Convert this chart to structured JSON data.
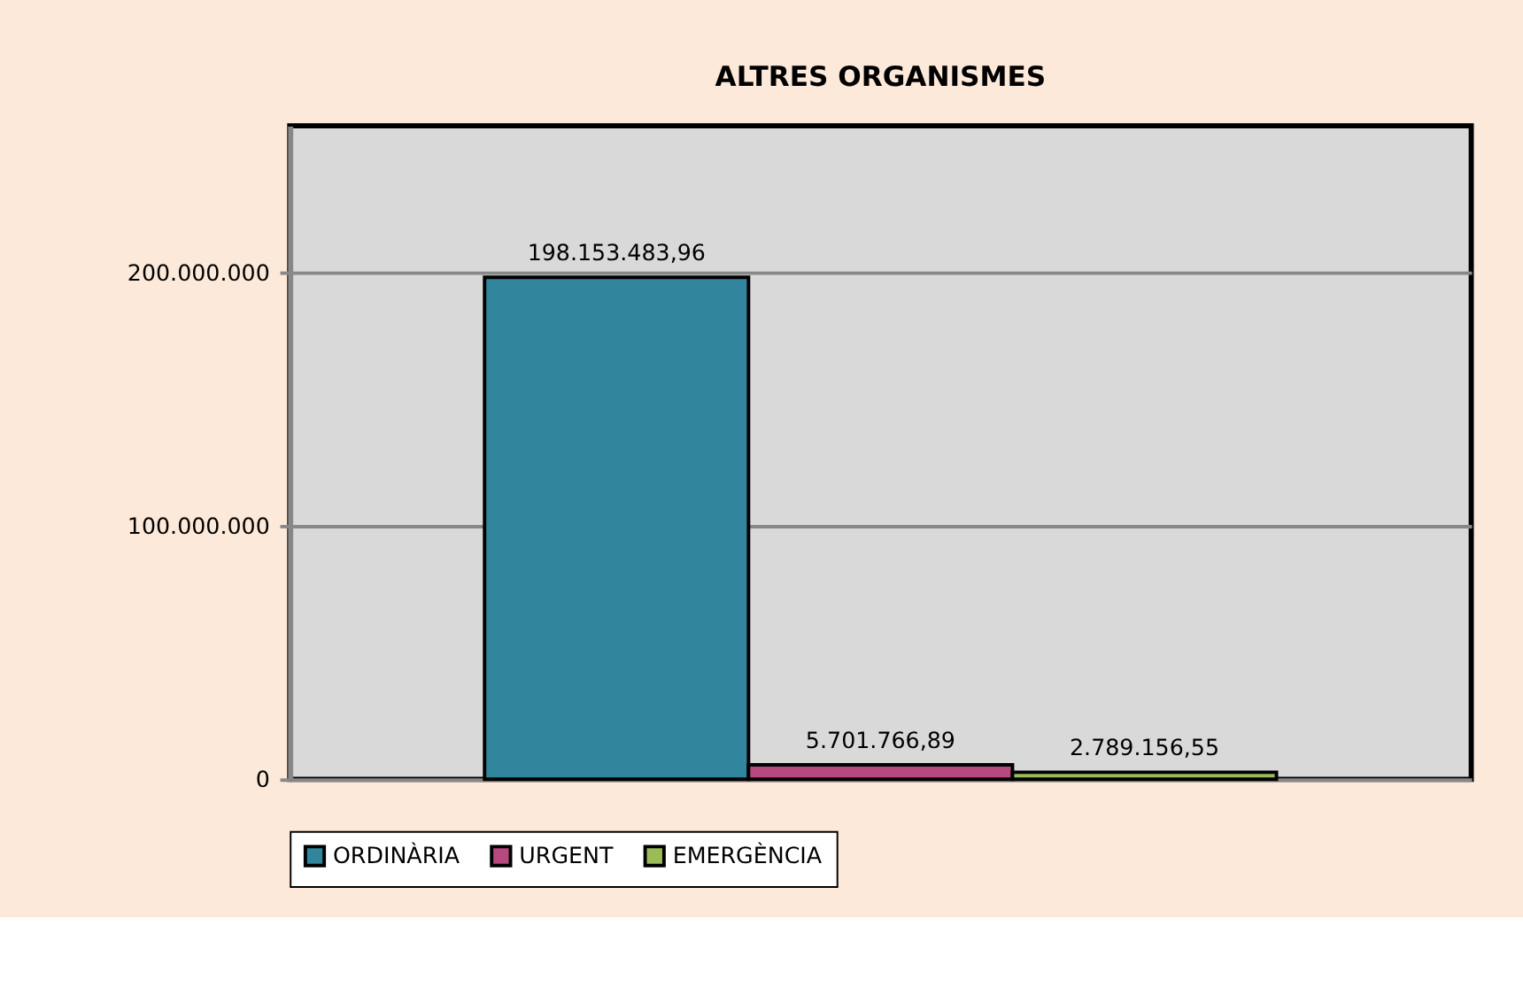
{
  "chart_data": {
    "type": "bar",
    "title": "ALTRES ORGANISMES",
    "categories": [
      null
    ],
    "series": [
      {
        "name": "ORDINÀRIA",
        "color": "#31859c",
        "values": [
          198153483.96
        ],
        "value_labels": [
          "198.153.483,96"
        ]
      },
      {
        "name": "URGENT",
        "color": "#b84880",
        "values": [
          5701766.89
        ],
        "value_labels": [
          "5.701.766,89"
        ]
      },
      {
        "name": "EMERGÈNCIA",
        "color": "#9bbb59",
        "values": [
          2789156.55
        ],
        "value_labels": [
          "2.789.156,55"
        ]
      }
    ],
    "ylim": [
      0,
      258000000
    ],
    "yticks": [
      {
        "value": 0,
        "label": "0"
      },
      {
        "value": 100000000,
        "label": "100.000.000"
      },
      {
        "value": 200000000,
        "label": "200.000.000"
      }
    ],
    "grid": "y",
    "legend": "bottom"
  }
}
